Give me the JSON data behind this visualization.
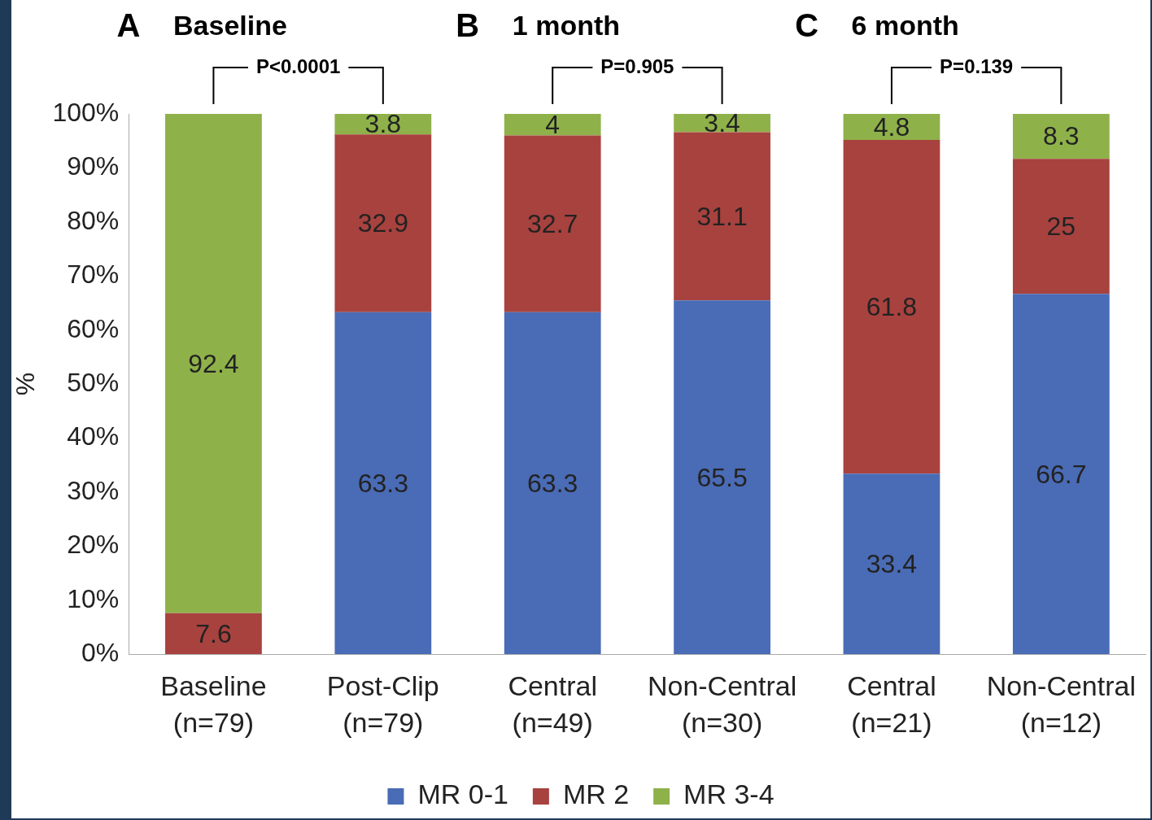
{
  "chart_data": {
    "type": "bar",
    "stacked": true,
    "ylabel": "%",
    "categories": [
      "Baseline\n(n=79)",
      "Post-Clip\n(n=79)",
      "Central\n(n=49)",
      "Non-Central\n(n=30)",
      "Central\n(n=21)",
      "Non-Central\n(n=12)"
    ],
    "series": [
      {
        "name": "MR 0-1",
        "color": "#4a6bb5",
        "values": [
          null,
          63.3,
          63.3,
          65.5,
          33.4,
          66.7
        ]
      },
      {
        "name": "MR 2",
        "color": "#a8423f",
        "values": [
          7.6,
          32.9,
          32.7,
          31.1,
          61.8,
          25
        ]
      },
      {
        "name": "MR 3-4",
        "color": "#8fb14a",
        "values": [
          92.4,
          3.8,
          4,
          3.4,
          4.8,
          8.3
        ]
      }
    ],
    "ylim": [
      0,
      100
    ],
    "yticks": [
      {
        "value": 0,
        "label": "0%"
      },
      {
        "value": 10,
        "label": "10%"
      },
      {
        "value": 20,
        "label": "20%"
      },
      {
        "value": 30,
        "label": "30%"
      },
      {
        "value": 40,
        "label": "40%"
      },
      {
        "value": 50,
        "label": "50%"
      },
      {
        "value": 60,
        "label": "60%"
      },
      {
        "value": 70,
        "label": "70%"
      },
      {
        "value": 80,
        "label": "80%"
      },
      {
        "value": 90,
        "label": "90%"
      },
      {
        "value": 100,
        "label": "100%"
      }
    ],
    "grid": false,
    "legend": "bottom",
    "data_labels": true,
    "annotations": [
      "A",
      "Baseline",
      "P<0.0001",
      "B",
      "1 month",
      "P=0.905",
      "C",
      "6 month",
      "P=0.139"
    ]
  }
}
